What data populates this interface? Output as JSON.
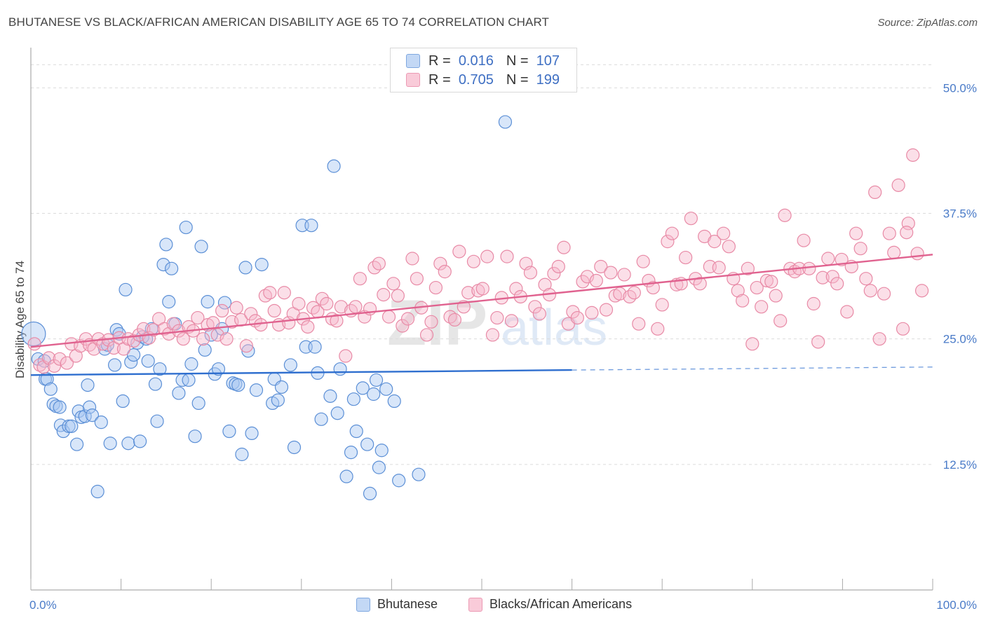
{
  "title": "BHUTANESE VS BLACK/AFRICAN AMERICAN DISABILITY AGE 65 TO 74 CORRELATION CHART",
  "source": "Source: ZipAtlas.com",
  "watermark": {
    "zip": "ZIP",
    "atlas": "atlas"
  },
  "legend": {
    "rows": [
      {
        "r_label": "R =",
        "r_value": "0.016",
        "n_label": "N =",
        "n_value": "107",
        "color": "#a9c8f2"
      },
      {
        "r_label": "R =",
        "r_value": "0.705",
        "n_label": "N =",
        "n_value": "199",
        "color": "#f7b8cb"
      }
    ]
  },
  "chart_data": {
    "type": "scatter",
    "ylabel": "Disability Age 65 to 74",
    "xlim": [
      0,
      100
    ],
    "ylim": [
      0,
      54
    ],
    "x_tick_labels": [
      {
        "v": 0,
        "label": "0.0%"
      },
      {
        "v": 100,
        "label": "100.0%"
      }
    ],
    "y_tick_labels": [
      {
        "v": 12.5,
        "label": "12.5%"
      },
      {
        "v": 25,
        "label": "25.0%"
      },
      {
        "v": 37.5,
        "label": "37.5%"
      },
      {
        "v": 50,
        "label": "50.0%"
      }
    ],
    "grid": "horizontal dashed",
    "series": [
      {
        "name": "Bhutanese",
        "color": "#5b8fd6",
        "fill": "#a9c8f2",
        "trend": {
          "x0": 0,
          "y0": 21.4,
          "x1": 60,
          "y1": 21.9,
          "dashed_to_x": 100,
          "dashed_to_y": 22.2,
          "color": "#2f6fcf"
        },
        "points": [
          [
            0.3,
            25.5
          ],
          [
            0.8,
            23.0
          ],
          [
            1.5,
            22.8
          ],
          [
            1.6,
            21.0
          ],
          [
            1.8,
            21.0
          ],
          [
            2.2,
            20.0
          ],
          [
            2.5,
            18.5
          ],
          [
            2.8,
            18.3
          ],
          [
            3.2,
            18.2
          ],
          [
            3.3,
            16.4
          ],
          [
            3.6,
            15.8
          ],
          [
            4.2,
            16.3
          ],
          [
            4.5,
            16.3
          ],
          [
            5.1,
            14.5
          ],
          [
            5.3,
            17.8
          ],
          [
            5.6,
            17.2
          ],
          [
            6.0,
            17.3
          ],
          [
            6.3,
            20.4
          ],
          [
            6.5,
            18.2
          ],
          [
            6.8,
            17.4
          ],
          [
            7.4,
            9.8
          ],
          [
            7.8,
            16.7
          ],
          [
            8.2,
            24.0
          ],
          [
            8.5,
            24.4
          ],
          [
            8.8,
            14.6
          ],
          [
            9.3,
            22.4
          ],
          [
            9.5,
            25.9
          ],
          [
            9.8,
            25.5
          ],
          [
            10.2,
            18.8
          ],
          [
            10.5,
            29.9
          ],
          [
            10.8,
            14.6
          ],
          [
            11.1,
            22.7
          ],
          [
            11.4,
            23.4
          ],
          [
            11.8,
            24.6
          ],
          [
            12.1,
            14.8
          ],
          [
            12.4,
            25.2
          ],
          [
            12.8,
            25.0
          ],
          [
            13.0,
            22.8
          ],
          [
            13.4,
            26.0
          ],
          [
            13.8,
            20.5
          ],
          [
            14.0,
            16.8
          ],
          [
            14.3,
            22.0
          ],
          [
            14.7,
            32.4
          ],
          [
            15.0,
            34.4
          ],
          [
            15.3,
            28.7
          ],
          [
            15.6,
            32.0
          ],
          [
            16.0,
            26.5
          ],
          [
            16.4,
            19.6
          ],
          [
            16.8,
            20.9
          ],
          [
            17.2,
            36.1
          ],
          [
            17.5,
            20.9
          ],
          [
            17.8,
            22.5
          ],
          [
            18.2,
            15.3
          ],
          [
            18.6,
            18.6
          ],
          [
            18.9,
            34.2
          ],
          [
            19.3,
            23.9
          ],
          [
            19.6,
            28.7
          ],
          [
            20.0,
            25.4
          ],
          [
            20.4,
            21.5
          ],
          [
            20.8,
            22.0
          ],
          [
            21.2,
            26.0
          ],
          [
            21.5,
            28.6
          ],
          [
            22.0,
            15.8
          ],
          [
            22.4,
            20.6
          ],
          [
            22.7,
            20.5
          ],
          [
            23.0,
            20.4
          ],
          [
            23.4,
            13.5
          ],
          [
            23.8,
            32.1
          ],
          [
            24.1,
            23.8
          ],
          [
            24.5,
            15.6
          ],
          [
            25.0,
            19.9
          ],
          [
            25.6,
            32.4
          ],
          [
            26.8,
            18.6
          ],
          [
            27.0,
            21.0
          ],
          [
            27.4,
            18.9
          ],
          [
            27.8,
            20.2
          ],
          [
            28.8,
            22.4
          ],
          [
            29.2,
            14.2
          ],
          [
            30.1,
            36.3
          ],
          [
            30.5,
            24.2
          ],
          [
            31.1,
            36.3
          ],
          [
            31.5,
            24.2
          ],
          [
            31.8,
            21.6
          ],
          [
            32.2,
            17.0
          ],
          [
            33.2,
            19.3
          ],
          [
            33.6,
            42.2
          ],
          [
            34.0,
            17.6
          ],
          [
            34.3,
            22.0
          ],
          [
            35.0,
            11.3
          ],
          [
            35.5,
            13.7
          ],
          [
            35.8,
            19.0
          ],
          [
            36.1,
            15.8
          ],
          [
            36.8,
            20.1
          ],
          [
            37.3,
            14.5
          ],
          [
            37.6,
            9.6
          ],
          [
            38.0,
            19.5
          ],
          [
            38.3,
            20.9
          ],
          [
            38.6,
            12.2
          ],
          [
            38.9,
            13.9
          ],
          [
            39.4,
            20.0
          ],
          [
            40.3,
            18.8
          ],
          [
            40.8,
            10.9
          ],
          [
            52.6,
            46.6
          ],
          [
            43.0,
            11.5
          ]
        ]
      },
      {
        "name": "Blacks/African Americans",
        "color": "#e88aa6",
        "fill": "#f7b8cb",
        "trend": {
          "x0": 0,
          "y0": 24.2,
          "x1": 100,
          "y1": 33.4,
          "color": "#e0628f"
        },
        "points": [
          [
            0.4,
            24.5
          ],
          [
            1.0,
            22.4
          ],
          [
            1.4,
            22.2
          ],
          [
            2.0,
            23.1
          ],
          [
            2.6,
            22.3
          ],
          [
            3.2,
            23.0
          ],
          [
            4.0,
            22.6
          ],
          [
            4.5,
            24.5
          ],
          [
            5.0,
            23.3
          ],
          [
            5.5,
            24.3
          ],
          [
            6.1,
            25.0
          ],
          [
            6.5,
            24.4
          ],
          [
            7.0,
            24.0
          ],
          [
            7.5,
            25.0
          ],
          [
            8.0,
            24.5
          ],
          [
            8.6,
            24.9
          ],
          [
            9.2,
            24.1
          ],
          [
            9.8,
            25.1
          ],
          [
            10.3,
            24.0
          ],
          [
            10.8,
            25.0
          ],
          [
            11.4,
            24.8
          ],
          [
            12.0,
            25.4
          ],
          [
            12.5,
            26.0
          ],
          [
            13.1,
            25.1
          ],
          [
            13.6,
            25.9
          ],
          [
            14.2,
            27.0
          ],
          [
            14.8,
            26.0
          ],
          [
            15.3,
            25.5
          ],
          [
            15.8,
            26.5
          ],
          [
            16.4,
            25.8
          ],
          [
            16.9,
            25.0
          ],
          [
            17.5,
            26.2
          ],
          [
            18.0,
            25.8
          ],
          [
            18.5,
            27.1
          ],
          [
            19.1,
            25.0
          ],
          [
            19.6,
            26.4
          ],
          [
            20.2,
            26.6
          ],
          [
            20.7,
            25.4
          ],
          [
            21.2,
            27.8
          ],
          [
            21.7,
            25.0
          ],
          [
            22.3,
            26.7
          ],
          [
            22.8,
            28.1
          ],
          [
            23.3,
            26.9
          ],
          [
            23.9,
            24.3
          ],
          [
            24.4,
            27.5
          ],
          [
            24.9,
            26.8
          ],
          [
            25.5,
            26.4
          ],
          [
            26.0,
            29.3
          ],
          [
            26.5,
            29.6
          ],
          [
            27.0,
            27.8
          ],
          [
            27.5,
            26.4
          ],
          [
            28.1,
            29.6
          ],
          [
            28.6,
            26.6
          ],
          [
            29.1,
            27.5
          ],
          [
            29.7,
            28.5
          ],
          [
            30.2,
            27.0
          ],
          [
            30.7,
            26.2
          ],
          [
            31.3,
            28.1
          ],
          [
            31.8,
            27.7
          ],
          [
            32.3,
            29.0
          ],
          [
            32.8,
            28.5
          ],
          [
            33.4,
            27.0
          ],
          [
            33.9,
            26.8
          ],
          [
            34.4,
            28.2
          ],
          [
            34.9,
            23.3
          ],
          [
            35.5,
            27.8
          ],
          [
            36.0,
            28.2
          ],
          [
            36.5,
            31.0
          ],
          [
            37.0,
            27.2
          ],
          [
            37.6,
            28.0
          ],
          [
            38.1,
            32.1
          ],
          [
            38.6,
            32.5
          ],
          [
            39.1,
            29.4
          ],
          [
            39.7,
            27.2
          ],
          [
            40.2,
            30.5
          ],
          [
            40.7,
            29.3
          ],
          [
            41.2,
            26.3
          ],
          [
            41.8,
            27.0
          ],
          [
            42.3,
            33.0
          ],
          [
            42.8,
            31.0
          ],
          [
            43.3,
            28.1
          ],
          [
            43.9,
            25.4
          ],
          [
            44.4,
            26.7
          ],
          [
            44.9,
            30.1
          ],
          [
            45.4,
            32.5
          ],
          [
            45.9,
            31.7
          ],
          [
            46.5,
            27.2
          ],
          [
            47.0,
            26.9
          ],
          [
            47.5,
            33.7
          ],
          [
            48.0,
            28.2
          ],
          [
            48.5,
            29.6
          ],
          [
            49.1,
            32.7
          ],
          [
            49.6,
            29.8
          ],
          [
            50.1,
            30.0
          ],
          [
            50.6,
            33.2
          ],
          [
            51.2,
            25.4
          ],
          [
            51.7,
            27.1
          ],
          [
            52.2,
            29.1
          ],
          [
            52.8,
            33.2
          ],
          [
            53.3,
            26.8
          ],
          [
            53.8,
            30.0
          ],
          [
            54.3,
            29.2
          ],
          [
            54.9,
            32.5
          ],
          [
            55.4,
            31.6
          ],
          [
            55.9,
            28.2
          ],
          [
            56.4,
            27.5
          ],
          [
            57.0,
            30.4
          ],
          [
            57.5,
            29.4
          ],
          [
            58.0,
            31.5
          ],
          [
            58.5,
            32.2
          ],
          [
            59.1,
            34.1
          ],
          [
            59.6,
            26.5
          ],
          [
            60.1,
            27.7
          ],
          [
            60.6,
            27.1
          ],
          [
            61.2,
            30.7
          ],
          [
            61.7,
            31.2
          ],
          [
            62.2,
            27.6
          ],
          [
            62.7,
            30.8
          ],
          [
            63.2,
            32.2
          ],
          [
            63.8,
            27.9
          ],
          [
            64.3,
            31.6
          ],
          [
            64.8,
            29.3
          ],
          [
            65.3,
            29.5
          ],
          [
            65.8,
            31.4
          ],
          [
            66.4,
            29.2
          ],
          [
            66.9,
            29.6
          ],
          [
            67.4,
            26.5
          ],
          [
            67.9,
            32.7
          ],
          [
            68.5,
            30.8
          ],
          [
            69.0,
            30.1
          ],
          [
            69.5,
            26.0
          ],
          [
            70.0,
            28.4
          ],
          [
            70.6,
            34.7
          ],
          [
            71.1,
            35.5
          ],
          [
            71.6,
            30.4
          ],
          [
            72.1,
            30.5
          ],
          [
            72.6,
            33.1
          ],
          [
            73.2,
            37.0
          ],
          [
            73.7,
            31.0
          ],
          [
            74.2,
            30.5
          ],
          [
            74.7,
            35.2
          ],
          [
            75.3,
            32.2
          ],
          [
            75.8,
            34.7
          ],
          [
            76.3,
            32.1
          ],
          [
            76.8,
            35.5
          ],
          [
            77.4,
            34.2
          ],
          [
            77.9,
            31.0
          ],
          [
            78.4,
            29.8
          ],
          [
            78.9,
            28.8
          ],
          [
            79.5,
            32.0
          ],
          [
            80.0,
            24.5
          ],
          [
            80.5,
            30.1
          ],
          [
            81.0,
            28.2
          ],
          [
            81.6,
            30.8
          ],
          [
            82.1,
            30.7
          ],
          [
            82.6,
            29.3
          ],
          [
            83.1,
            26.8
          ],
          [
            83.6,
            37.3
          ],
          [
            84.2,
            32.0
          ],
          [
            84.7,
            31.7
          ],
          [
            85.2,
            32.0
          ],
          [
            85.7,
            34.8
          ],
          [
            86.3,
            32.0
          ],
          [
            86.8,
            28.5
          ],
          [
            87.3,
            24.7
          ],
          [
            87.8,
            31.1
          ],
          [
            88.4,
            33.0
          ],
          [
            88.9,
            31.2
          ],
          [
            89.4,
            30.5
          ],
          [
            89.9,
            32.9
          ],
          [
            90.5,
            27.7
          ],
          [
            91.0,
            32.2
          ],
          [
            91.5,
            35.5
          ],
          [
            92.0,
            34.0
          ],
          [
            92.6,
            31.0
          ],
          [
            93.1,
            29.8
          ],
          [
            93.6,
            39.6
          ],
          [
            94.1,
            25.0
          ],
          [
            94.6,
            29.5
          ],
          [
            95.2,
            35.5
          ],
          [
            95.7,
            33.6
          ],
          [
            96.2,
            40.3
          ],
          [
            96.7,
            26.0
          ],
          [
            97.3,
            36.5
          ],
          [
            97.8,
            43.3
          ],
          [
            98.3,
            33.5
          ],
          [
            98.8,
            29.8
          ],
          [
            97.1,
            35.6
          ]
        ]
      }
    ]
  }
}
